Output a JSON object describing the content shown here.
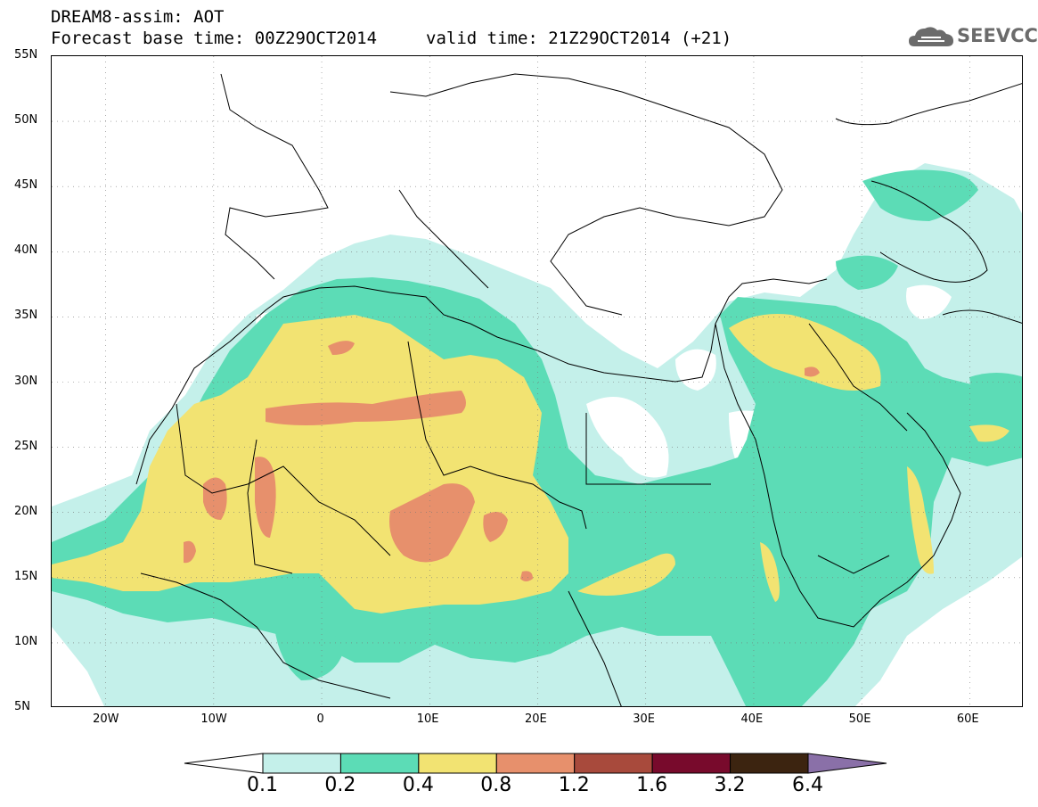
{
  "header": {
    "title_line1": "DREAM8-assim: AOT",
    "title_line2": "Forecast base time: 00Z29OCT2014",
    "valid_time": "valid time: 21Z29OCT2014 (+21)",
    "logo_text": "SEEVCCC",
    "logo_icon": "cloud-logo-icon"
  },
  "axes": {
    "lat_labels": [
      "55N",
      "50N",
      "45N",
      "40N",
      "35N",
      "30N",
      "25N",
      "20N",
      "15N",
      "10N",
      "5N"
    ],
    "lon_labels": [
      "20W",
      "10W",
      "0",
      "10E",
      "20E",
      "30E",
      "40E",
      "50E",
      "60E"
    ],
    "lat_range": [
      5,
      55
    ],
    "lon_range": [
      -25,
      65
    ],
    "grid": "dotted"
  },
  "legend": {
    "labels": [
      "0.1",
      "0.2",
      "0.4",
      "0.8",
      "1.2",
      "1.6",
      "3.2",
      "6.4"
    ],
    "colors": [
      "#ffffff",
      "#c4f0ea",
      "#5cdcb6",
      "#f2e372",
      "#e7906c",
      "#a84a3c",
      "#780a2c",
      "#3c2410",
      "#8a70a8"
    ]
  },
  "colors": {
    "level1": "#c4f0ea",
    "level2": "#5cdcb6",
    "level3": "#f2e372",
    "level4": "#e7906c",
    "coast": "#000000"
  }
}
